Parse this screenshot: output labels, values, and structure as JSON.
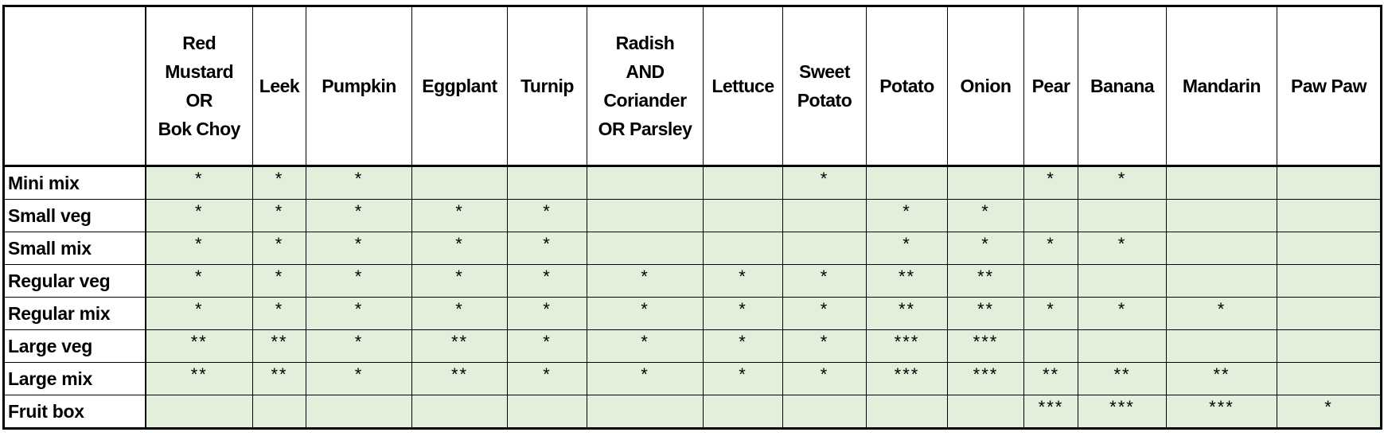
{
  "table": {
    "columns": [
      "",
      "Red\nMustard\nOR\nBok Choy",
      "Leek",
      "Pumpkin",
      "Eggplant",
      "Turnip",
      "Radish\nAND\nCoriander\nOR Parsley",
      "Lettuce",
      "Sweet\nPotato",
      "Potato",
      "Onion",
      "Pear",
      "Banana",
      "Mandarin",
      "Paw Paw"
    ],
    "rows": [
      {
        "label": "Mini mix",
        "cells": [
          "*",
          "*",
          "*",
          "",
          "",
          "",
          "",
          "*",
          "",
          "",
          "*",
          "*",
          "",
          ""
        ]
      },
      {
        "label": "Small veg",
        "cells": [
          "*",
          "*",
          "*",
          "*",
          "*",
          "",
          "",
          "",
          "*",
          "*",
          "",
          "",
          "",
          ""
        ]
      },
      {
        "label": "Small mix",
        "cells": [
          "*",
          "*",
          "*",
          "*",
          "*",
          "",
          "",
          "",
          "*",
          "*",
          "*",
          "*",
          "",
          ""
        ]
      },
      {
        "label": "Regular veg",
        "cells": [
          "*",
          "*",
          "*",
          "*",
          "*",
          "*",
          "*",
          "*",
          "**",
          "**",
          "",
          "",
          "",
          ""
        ]
      },
      {
        "label": "Regular mix",
        "cells": [
          "*",
          "*",
          "*",
          "*",
          "*",
          "*",
          "*",
          "*",
          "**",
          "**",
          "*",
          "*",
          "*",
          ""
        ]
      },
      {
        "label": "Large veg",
        "cells": [
          "**",
          "**",
          "*",
          "**",
          "*",
          "*",
          "*",
          "*",
          "***",
          "***",
          "",
          "",
          "",
          ""
        ]
      },
      {
        "label": "Large mix",
        "cells": [
          "**",
          "**",
          "*",
          "**",
          "*",
          "*",
          "*",
          "*",
          "***",
          "***",
          "**",
          "**",
          "**",
          ""
        ]
      },
      {
        "label": "Fruit box",
        "cells": [
          "",
          "",
          "",
          "",
          "",
          "",
          "",
          "",
          "",
          "",
          "***",
          "***",
          "***",
          "*"
        ]
      }
    ]
  },
  "colors": {
    "cell_background": "#e2efda",
    "header_background": "#ffffff",
    "border": "#000000"
  }
}
